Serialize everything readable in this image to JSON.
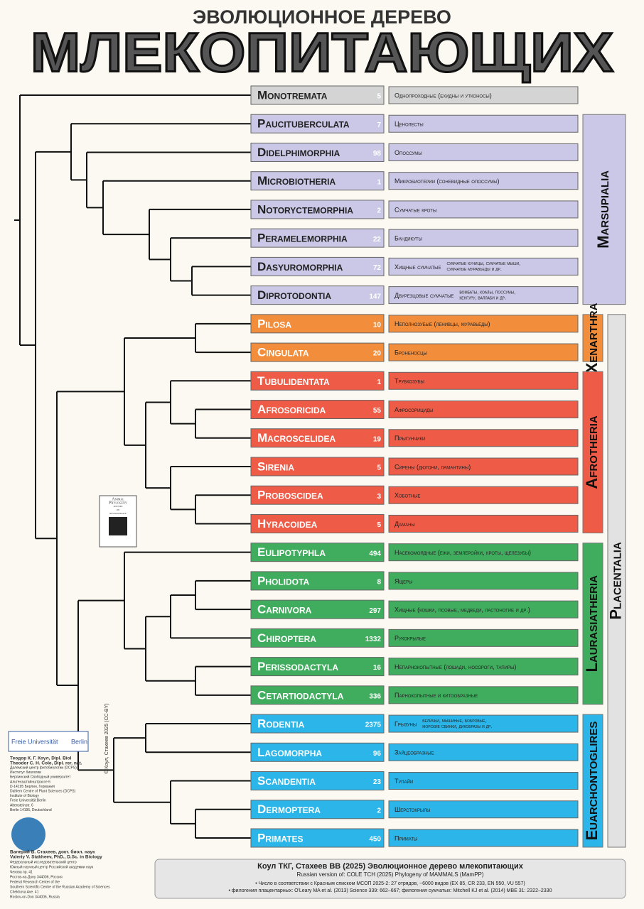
{
  "header": {
    "subtitle": "ЭВОЛЮЦИОННОЕ ДЕРЕВО",
    "title": "МЛЕКОПИТАЮЩИХ"
  },
  "orders": [
    {
      "name": "Monotremata",
      "count": 5,
      "description": "Однопроходные (ехидны и утконосы)",
      "color": "#d4d4d4"
    },
    {
      "name": "Paucituberculata",
      "count": 7,
      "description": "Ценолесты",
      "color": "#cbc7e6"
    },
    {
      "name": "Didelphimorphia",
      "count": 98,
      "description": "Опоссумы",
      "color": "#cbc7e6"
    },
    {
      "name": "Microbiotheria",
      "count": 1,
      "description": "Микробиотерии (соневидные опоссумы)",
      "color": "#cbc7e6"
    },
    {
      "name": "Notoryctemorphia",
      "count": 2,
      "description": "Сумчатые кроты",
      "color": "#cbc7e6"
    },
    {
      "name": "Peramelemorphia",
      "count": 22,
      "description": "Бандикуты",
      "color": "#cbc7e6"
    },
    {
      "name": "Dasyuromorphia",
      "count": 72,
      "description": "Хищные сумчатые",
      "note": [
        "сумчатые куницы, сумчатые мыши,",
        "сумчатые муравьеды и др."
      ],
      "color": "#cbc7e6"
    },
    {
      "name": "Diprotodontia",
      "count": 147,
      "description": "Двурезцовые сумчатые",
      "note": [
        "вомбаты, коалы, поссумы,",
        "кенгуру, валлаби и др."
      ],
      "color": "#cbc7e6"
    },
    {
      "name": "Pilosa",
      "count": 10,
      "description": "Неполнозубые (ленивцы, муравьеды)",
      "color": "#f28d3c"
    },
    {
      "name": "Cingulata",
      "count": 20,
      "description": "Броненосцы",
      "color": "#f28d3c"
    },
    {
      "name": "Tubulidentata",
      "count": 1,
      "description": "Трубкозубы",
      "color": "#ee5b47"
    },
    {
      "name": "Afrosoricida",
      "count": 55,
      "description": "Афросорициды",
      "color": "#ee5b47"
    },
    {
      "name": "Macroscelidea",
      "count": 19,
      "description": "Прыгунчики",
      "color": "#ee5b47"
    },
    {
      "name": "Sirenia",
      "count": 5,
      "description": "Сирены (дюгони, ламантины)",
      "color": "#ee5b47"
    },
    {
      "name": "Proboscidea",
      "count": 3,
      "description": "Хоботные",
      "color": "#ee5b47"
    },
    {
      "name": "Hyracoidea",
      "count": 5,
      "description": "Даманы",
      "color": "#ee5b47"
    },
    {
      "name": "Eulipotyphla",
      "count": 494,
      "description": "Насекомоядные (ежи, землеройки, кроты, щелезубы)",
      "color": "#40ad5e"
    },
    {
      "name": "Pholidota",
      "count": 8,
      "description": "Ящеры",
      "color": "#40ad5e"
    },
    {
      "name": "Carnivora",
      "count": 297,
      "description": "Хищные (кошки, псовые, медведи, ластоногие и др.)",
      "color": "#40ad5e"
    },
    {
      "name": "Chiroptera",
      "count": 1332,
      "description": "Рукокрылые",
      "color": "#40ad5e"
    },
    {
      "name": "Perissodactyla",
      "count": 16,
      "description": "Непарнокопытные (лошади, носороги, тапиры)",
      "color": "#40ad5e"
    },
    {
      "name": "Cetartiodactyla",
      "count": 336,
      "description": "Парнокопытные и китообразные",
      "color": "#40ad5e"
    },
    {
      "name": "Rodentia",
      "count": 2375,
      "description": "Грызуны",
      "note": [
        "беличьи, мышиные, бобровые,",
        "морские свинки, дикобразы и др."
      ],
      "color": "#2bb5e8"
    },
    {
      "name": "Lagomorpha",
      "count": 96,
      "description": "Зайцеобразные",
      "color": "#2bb5e8"
    },
    {
      "name": "Scandentia",
      "count": 23,
      "description": "Тупайи",
      "color": "#2bb5e8"
    },
    {
      "name": "Dermoptera",
      "count": 2,
      "description": "Шерстокрылы",
      "color": "#2bb5e8"
    },
    {
      "name": "Primates",
      "count": 450,
      "description": "Приматы",
      "color": "#2bb5e8"
    }
  ],
  "clades": [
    {
      "name": "Marsupialia",
      "color": "#cbc7e6"
    },
    {
      "name": "Xenarthra",
      "color": "#f28d3c"
    },
    {
      "name": "Afrotheria",
      "color": "#ee5b47"
    },
    {
      "name": "Laurasiatheria",
      "color": "#40ad5e"
    },
    {
      "name": "Euarchontoglires",
      "color": "#2bb5e8"
    },
    {
      "name": "Placentalia",
      "color": "#e2e2e2"
    }
  ],
  "badge": [
    "Animal",
    "Phylogeny",
    "posters",
    "on",
    "researchgate"
  ],
  "copyright": "© Коул, Стахеев 2025 (CC-BY)",
  "logo": [
    "Freie Universität",
    "Berlin"
  ],
  "authors": [
    [
      "Теодор К. Г. Коул, Dipl. Biol",
      "Theodor C. H. Cole, Dipl. rer. nat.",
      "Далемский центр фитобиологии (DCPS)",
      "Институт биологии",
      "Берлинский Свободный университет",
      "Альтензштайнштрассе 6",
      "D-14195 Берлин, Германия",
      "Dahlem Centre of Plant Sciences (DCPS)",
      "Institute of Biology",
      "Freie Universität Berlin",
      "Altensteinstr. 6",
      "Berlin 14195, Deutschland"
    ],
    [
      "Валерий В. Стахеев, докт. биол. наук",
      "Valeriy V. Stakheev, PhD., D.Sc. in Biology",
      "Федеральный исследовательский центр",
      "Южный научный центр Российской академии наук",
      "Чехова пр. 41",
      "Ростов-на-Дону 344006, Россия",
      "Federal Research Center of the",
      "Southern Scientific Centre of the Russian Academy of Sciences",
      "Chekhova Ave. 41",
      "Rostov-on-Don 344006, Russia"
    ]
  ],
  "footer": [
    "Коул ТКГ, Стахеев ВВ (2025) Эволюционное дерево млекопитающих",
    "Russian version of: COLE TCH (2025) Phylogeny of MAMMALS (MamPP)",
    "• Число в соответствии с Красным списком МСОП 2025-2: 27 отрядов, ~6000 видов (EX 85, CR 233, EN 550, VU 557)",
    "• филогения плацентарных: O'Leary MA et al. (2013) Science 339: 662–667; филогения сумчатых: Mitchell KJ et al. (2014) MBE 31: 2322–2330"
  ]
}
